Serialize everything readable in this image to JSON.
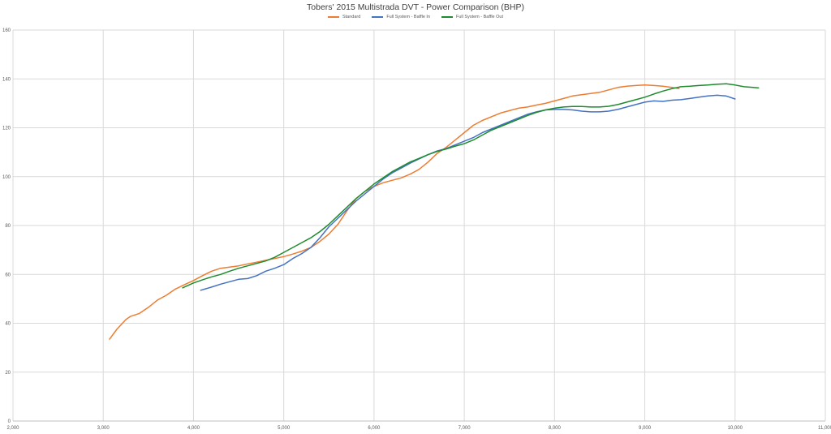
{
  "chart_data": {
    "type": "line",
    "title": "Tobers' 2015 Multistrada DVT - Power Comparison (BHP)",
    "xlabel": "",
    "ylabel": "",
    "xlim": [
      2000,
      11000
    ],
    "ylim": [
      0,
      160
    ],
    "x_ticks": [
      2000,
      3000,
      4000,
      5000,
      6000,
      7000,
      8000,
      9000,
      10000,
      11000
    ],
    "x_tick_labels": [
      "2,000",
      "3,000",
      "4,000",
      "5,000",
      "6,000",
      "7,000",
      "8,000",
      "9,000",
      "10,000",
      "11,000"
    ],
    "y_ticks": [
      0,
      20,
      40,
      60,
      80,
      100,
      120,
      140,
      160
    ],
    "y_tick_labels": [
      "0",
      "20",
      "40",
      "60",
      "80",
      "100",
      "120",
      "140",
      "160"
    ],
    "grid": true,
    "legend_position": "top-center",
    "series": [
      {
        "name": "Standard",
        "color": "#ED7D31",
        "points": [
          [
            3070,
            33.5
          ],
          [
            3150,
            37.5
          ],
          [
            3250,
            41.5
          ],
          [
            3300,
            42.8
          ],
          [
            3400,
            44.0
          ],
          [
            3500,
            46.5
          ],
          [
            3600,
            49.5
          ],
          [
            3700,
            51.5
          ],
          [
            3800,
            54.0
          ],
          [
            3900,
            55.8
          ],
          [
            4000,
            57.5
          ],
          [
            4100,
            59.5
          ],
          [
            4200,
            61.3
          ],
          [
            4300,
            62.5
          ],
          [
            4400,
            63.0
          ],
          [
            4500,
            63.5
          ],
          [
            4600,
            64.3
          ],
          [
            4700,
            65.0
          ],
          [
            4800,
            65.8
          ],
          [
            4900,
            66.5
          ],
          [
            5000,
            67.3
          ],
          [
            5100,
            68.3
          ],
          [
            5200,
            69.5
          ],
          [
            5300,
            71.0
          ],
          [
            5400,
            73.5
          ],
          [
            5500,
            76.5
          ],
          [
            5600,
            80.5
          ],
          [
            5700,
            86.0
          ],
          [
            5800,
            91.0
          ],
          [
            5900,
            94.0
          ],
          [
            6000,
            96.0
          ],
          [
            6100,
            97.5
          ],
          [
            6200,
            98.5
          ],
          [
            6300,
            99.5
          ],
          [
            6400,
            101.0
          ],
          [
            6500,
            103.0
          ],
          [
            6600,
            106.0
          ],
          [
            6700,
            109.5
          ],
          [
            6800,
            112.0
          ],
          [
            6900,
            115.0
          ],
          [
            7000,
            118.0
          ],
          [
            7100,
            121.0
          ],
          [
            7200,
            123.0
          ],
          [
            7300,
            124.5
          ],
          [
            7400,
            126.0
          ],
          [
            7500,
            127.0
          ],
          [
            7600,
            128.0
          ],
          [
            7700,
            128.5
          ],
          [
            7800,
            129.3
          ],
          [
            7900,
            130.0
          ],
          [
            8000,
            131.0
          ],
          [
            8100,
            132.0
          ],
          [
            8200,
            133.0
          ],
          [
            8300,
            133.5
          ],
          [
            8400,
            134.0
          ],
          [
            8500,
            134.5
          ],
          [
            8600,
            135.5
          ],
          [
            8700,
            136.5
          ],
          [
            8800,
            137.0
          ],
          [
            8900,
            137.3
          ],
          [
            9000,
            137.5
          ],
          [
            9100,
            137.3
          ],
          [
            9200,
            137.0
          ],
          [
            9300,
            136.5
          ],
          [
            9380,
            136.0
          ]
        ]
      },
      {
        "name": "Full System - Baffle In",
        "color": "#4472C4",
        "points": [
          [
            4080,
            53.5
          ],
          [
            4200,
            54.8
          ],
          [
            4300,
            56.0
          ],
          [
            4400,
            57.0
          ],
          [
            4500,
            58.0
          ],
          [
            4600,
            58.3
          ],
          [
            4700,
            59.5
          ],
          [
            4800,
            61.3
          ],
          [
            4900,
            62.5
          ],
          [
            5000,
            64.0
          ],
          [
            5100,
            66.5
          ],
          [
            5200,
            68.5
          ],
          [
            5300,
            71.0
          ],
          [
            5400,
            75.0
          ],
          [
            5500,
            79.5
          ],
          [
            5600,
            83.0
          ],
          [
            5700,
            86.5
          ],
          [
            5800,
            90.0
          ],
          [
            5900,
            93.0
          ],
          [
            6000,
            96.0
          ],
          [
            6100,
            99.0
          ],
          [
            6200,
            101.5
          ],
          [
            6300,
            103.5
          ],
          [
            6400,
            105.5
          ],
          [
            6500,
            107.3
          ],
          [
            6600,
            109.0
          ],
          [
            6700,
            110.5
          ],
          [
            6800,
            111.5
          ],
          [
            6900,
            113.0
          ],
          [
            7000,
            114.5
          ],
          [
            7100,
            116.0
          ],
          [
            7200,
            118.0
          ],
          [
            7300,
            119.5
          ],
          [
            7400,
            121.0
          ],
          [
            7500,
            122.5
          ],
          [
            7600,
            124.0
          ],
          [
            7700,
            125.5
          ],
          [
            7800,
            126.5
          ],
          [
            7900,
            127.3
          ],
          [
            8000,
            127.5
          ],
          [
            8100,
            127.5
          ],
          [
            8200,
            127.3
          ],
          [
            8300,
            126.8
          ],
          [
            8400,
            126.5
          ],
          [
            8500,
            126.5
          ],
          [
            8600,
            126.8
          ],
          [
            8700,
            127.5
          ],
          [
            8800,
            128.5
          ],
          [
            8900,
            129.5
          ],
          [
            9000,
            130.5
          ],
          [
            9100,
            131.0
          ],
          [
            9200,
            130.8
          ],
          [
            9300,
            131.3
          ],
          [
            9400,
            131.5
          ],
          [
            9500,
            132.0
          ],
          [
            9600,
            132.5
          ],
          [
            9700,
            133.0
          ],
          [
            9800,
            133.3
          ],
          [
            9900,
            133.0
          ],
          [
            10000,
            131.8
          ]
        ]
      },
      {
        "name": "Full System - Baffle Out",
        "color": "#1E8C2E",
        "points": [
          [
            3880,
            54.5
          ],
          [
            4000,
            56.5
          ],
          [
            4100,
            57.8
          ],
          [
            4200,
            59.0
          ],
          [
            4300,
            60.0
          ],
          [
            4400,
            61.3
          ],
          [
            4500,
            62.5
          ],
          [
            4600,
            63.5
          ],
          [
            4700,
            64.5
          ],
          [
            4800,
            65.5
          ],
          [
            4900,
            67.0
          ],
          [
            5000,
            69.0
          ],
          [
            5100,
            71.0
          ],
          [
            5200,
            73.0
          ],
          [
            5300,
            75.0
          ],
          [
            5400,
            77.5
          ],
          [
            5500,
            80.5
          ],
          [
            5600,
            84.0
          ],
          [
            5700,
            87.5
          ],
          [
            5800,
            91.0
          ],
          [
            5900,
            94.0
          ],
          [
            6000,
            97.0
          ],
          [
            6100,
            99.5
          ],
          [
            6200,
            102.0
          ],
          [
            6300,
            104.0
          ],
          [
            6400,
            106.0
          ],
          [
            6500,
            107.5
          ],
          [
            6600,
            109.0
          ],
          [
            6700,
            110.3
          ],
          [
            6800,
            111.3
          ],
          [
            6900,
            112.5
          ],
          [
            7000,
            113.5
          ],
          [
            7100,
            115.0
          ],
          [
            7200,
            117.0
          ],
          [
            7300,
            119.0
          ],
          [
            7400,
            120.5
          ],
          [
            7500,
            122.0
          ],
          [
            7600,
            123.5
          ],
          [
            7700,
            125.0
          ],
          [
            7800,
            126.3
          ],
          [
            7900,
            127.3
          ],
          [
            8000,
            128.0
          ],
          [
            8100,
            128.5
          ],
          [
            8200,
            128.7
          ],
          [
            8300,
            128.7
          ],
          [
            8400,
            128.5
          ],
          [
            8500,
            128.5
          ],
          [
            8600,
            128.8
          ],
          [
            8700,
            129.5
          ],
          [
            8800,
            130.5
          ],
          [
            8900,
            131.5
          ],
          [
            9000,
            132.5
          ],
          [
            9100,
            133.8
          ],
          [
            9200,
            135.0
          ],
          [
            9300,
            136.0
          ],
          [
            9400,
            136.8
          ],
          [
            9500,
            137.0
          ],
          [
            9600,
            137.3
          ],
          [
            9700,
            137.5
          ],
          [
            9800,
            137.8
          ],
          [
            9900,
            138.0
          ],
          [
            10000,
            137.5
          ],
          [
            10100,
            136.8
          ],
          [
            10200,
            136.5
          ],
          [
            10260,
            136.3
          ]
        ]
      }
    ]
  }
}
